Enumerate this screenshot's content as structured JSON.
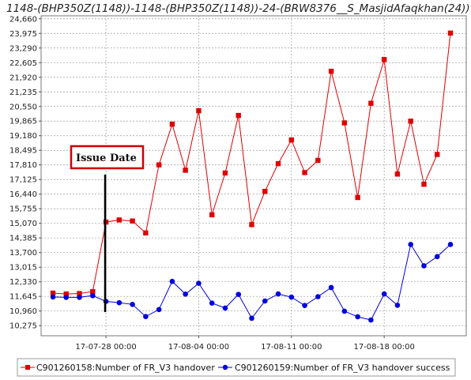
{
  "chart_data": {
    "type": "line",
    "title": "1148-(BHP350Z(1148))-1148-(BHP350Z(1148))-24-(BRW8376__S_MasjidAfaqkhan(24))",
    "xlabel": "",
    "ylabel": "",
    "ylim": [
      9800,
      24800
    ],
    "y_ticks": [
      "10,275",
      "10,960",
      "11,645",
      "12,330",
      "13,015",
      "13,700",
      "14,385",
      "15,070",
      "15,755",
      "16,440",
      "17,125",
      "17,810",
      "18,495",
      "19,180",
      "19,865",
      "20,550",
      "21,235",
      "21,920",
      "22,605",
      "23,290",
      "23,975",
      "24,660"
    ],
    "x_dates": [
      "2017-07-24",
      "2017-07-25",
      "2017-07-26",
      "2017-07-27",
      "2017-07-28",
      "2017-07-29",
      "2017-07-30",
      "2017-07-31",
      "2017-08-01",
      "2017-08-02",
      "2017-08-03",
      "2017-08-04",
      "2017-08-05",
      "2017-08-06",
      "2017-08-07",
      "2017-08-08",
      "2017-08-09",
      "2017-08-10",
      "2017-08-11",
      "2017-08-12",
      "2017-08-13",
      "2017-08-14",
      "2017-08-15",
      "2017-08-16",
      "2017-08-17",
      "2017-08-18",
      "2017-08-19",
      "2017-08-20",
      "2017-08-21",
      "2017-08-22",
      "2017-08-23"
    ],
    "x_tick_dates": [
      "2017-07-28",
      "2017-08-04",
      "2017-08-11",
      "2017-08-18"
    ],
    "x_tick_labels": [
      "17-07-28 00:00",
      "17-08-04 00:00",
      "17-08-11 00:00",
      "17-08-18 00:00"
    ],
    "grid": true,
    "legend_position": "bottom",
    "series": [
      {
        "name": "C901260158:Number of FR_V3 handover",
        "color": "#e00000",
        "marker": "square",
        "values": [
          11800,
          11760,
          11780,
          11870,
          15130,
          15230,
          15180,
          14620,
          17810,
          19720,
          17560,
          20350,
          15470,
          17430,
          20130,
          15010,
          16570,
          17870,
          18980,
          17450,
          18020,
          22200,
          19780,
          16280,
          20700,
          22750,
          17380,
          19860,
          16900,
          18300,
          23990
        ]
      },
      {
        "name": "C901260159:Number of FR_V3 handover success",
        "color": "#0000e0",
        "marker": "circle",
        "values": [
          11620,
          11600,
          11600,
          11680,
          11410,
          11350,
          11270,
          10700,
          11030,
          12350,
          11750,
          12260,
          11330,
          11100,
          11740,
          10620,
          11430,
          11760,
          11610,
          11220,
          11630,
          12060,
          10950,
          10690,
          10540,
          11760,
          11230,
          14080,
          13080,
          13510,
          14080
        ]
      }
    ],
    "annotation": {
      "text": "Issue Date",
      "x": "2017-07-28"
    }
  }
}
